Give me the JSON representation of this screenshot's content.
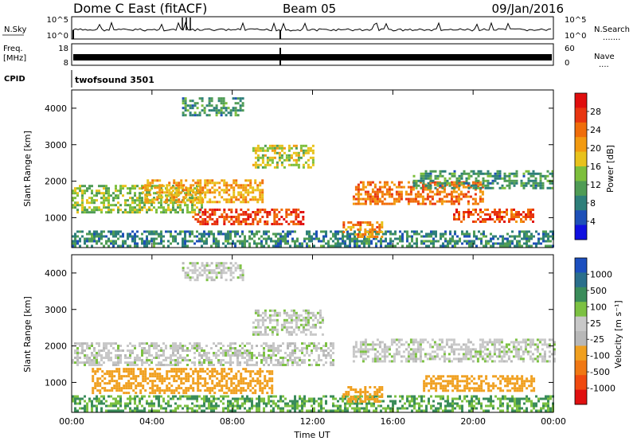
{
  "header": {
    "radar_title": "Dome C East (fitACF)",
    "beam_label": "Beam 05",
    "date_label": "09/Jan/2016"
  },
  "nsky": {
    "label": "N.Sky",
    "left_ticks": [
      "10^5",
      "10^0"
    ],
    "right_ticks": [
      "10^5",
      "10^0"
    ],
    "right_label": "N.Search",
    "right_dots": "......."
  },
  "freq": {
    "label_line1": "Freq.",
    "label_line2": "[MHz]",
    "left_ticks": [
      "18",
      "8"
    ],
    "right_ticks": [
      "60",
      "0"
    ],
    "right_label": "Nave",
    "right_dots": "...."
  },
  "cpid": {
    "label": "CPID",
    "value": "twofsound 3501"
  },
  "colors": {
    "power_scale": [
      "#1010e0",
      "#1e50b8",
      "#2e7f7a",
      "#4f9c55",
      "#7dbf3c",
      "#e8c21c",
      "#f29a10",
      "#f06d0a",
      "#e83510",
      "#e00e0e"
    ],
    "velocity_scale": [
      "#1c4fbf",
      "#2a6f8c",
      "#3a8c5a",
      "#7cc142",
      "#c8c8c8",
      "#b8b8b8",
      "#f0a020",
      "#f07814",
      "#f04a10",
      "#e01010"
    ]
  },
  "chart_data": [
    {
      "type": "heatmap",
      "panel": "power",
      "xlabel": "",
      "ylabel": "Slant Range [km]",
      "x_ticks": [
        "00:00",
        "04:00",
        "08:00",
        "12:00",
        "16:00",
        "20:00",
        "00:00"
      ],
      "xlim_hours": [
        0,
        24
      ],
      "y_ticks": [
        1000,
        2000,
        3000,
        4000
      ],
      "ylim": [
        180,
        4500
      ],
      "colorbar_label": "Power [dB]",
      "colorbar_ticks": [
        4,
        8,
        12,
        16,
        20,
        24,
        28
      ],
      "colorbar_range": [
        0,
        32
      ],
      "bands": [
        {
          "t0": 0.0,
          "t1": 24.0,
          "r0": 200,
          "r1": 650,
          "value": 9
        },
        {
          "t0": 0.0,
          "t1": 6.5,
          "r0": 1150,
          "r1": 1900,
          "value": 14
        },
        {
          "t0": 3.5,
          "t1": 9.5,
          "r0": 1450,
          "r1": 2050,
          "value": 20
        },
        {
          "t0": 6.0,
          "t1": 11.5,
          "r0": 850,
          "r1": 1250,
          "value": 27
        },
        {
          "t0": 9.0,
          "t1": 12.0,
          "r0": 2400,
          "r1": 3000,
          "value": 16
        },
        {
          "t0": 14.0,
          "t1": 20.5,
          "r0": 1350,
          "r1": 2000,
          "value": 24
        },
        {
          "t0": 19.0,
          "t1": 23.0,
          "r0": 900,
          "r1": 1250,
          "value": 26
        },
        {
          "t0": 13.5,
          "t1": 15.5,
          "r0": 500,
          "r1": 900,
          "value": 22
        },
        {
          "t0": 17.0,
          "t1": 24.0,
          "r0": 1800,
          "r1": 2300,
          "value": 10
        },
        {
          "t0": 5.5,
          "t1": 8.5,
          "r0": 3800,
          "r1": 4300,
          "value": 10
        }
      ]
    },
    {
      "type": "heatmap",
      "panel": "velocity",
      "xlabel": "Time UT",
      "ylabel": "Slant Range [km]",
      "x_ticks": [
        "00:00",
        "04:00",
        "08:00",
        "12:00",
        "16:00",
        "20:00",
        "00:00"
      ],
      "xlim_hours": [
        0,
        24
      ],
      "y_ticks": [
        1000,
        2000,
        3000,
        4000
      ],
      "ylim": [
        180,
        4500
      ],
      "colorbar_label": "Velocity [m s⁻¹]",
      "colorbar_ticks": [
        "1000",
        "500",
        "100",
        "25",
        "-25",
        "-100",
        "-500",
        "-1000"
      ],
      "bands": [
        {
          "t0": 0.0,
          "t1": 24.0,
          "r0": 200,
          "r1": 650,
          "value": 100
        },
        {
          "t0": 1.0,
          "t1": 10.0,
          "r0": 700,
          "r1": 1400,
          "value": -300
        },
        {
          "t0": 0.0,
          "t1": 13.0,
          "r0": 1500,
          "r1": 2100,
          "value": 0
        },
        {
          "t0": 9.0,
          "t1": 12.5,
          "r0": 2300,
          "r1": 3000,
          "value": 0
        },
        {
          "t0": 14.0,
          "t1": 24.0,
          "r0": 1600,
          "r1": 2200,
          "value": 0
        },
        {
          "t0": 17.5,
          "t1": 23.0,
          "r0": 800,
          "r1": 1200,
          "value": -150
        },
        {
          "t0": 13.5,
          "t1": 15.5,
          "r0": 500,
          "r1": 900,
          "value": -200
        },
        {
          "t0": 5.5,
          "t1": 8.5,
          "r0": 3800,
          "r1": 4300,
          "value": 0
        }
      ]
    }
  ]
}
